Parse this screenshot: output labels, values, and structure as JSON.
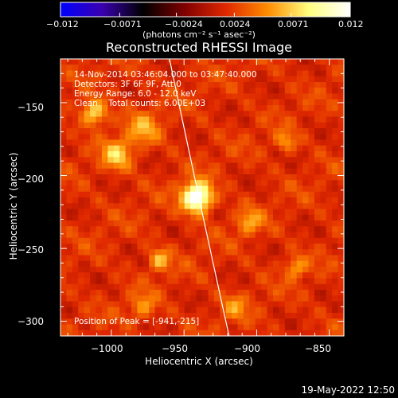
{
  "chart_data": {
    "type": "heatmap",
    "title": "Reconstructed RHESSI Image",
    "xlabel": "Heliocentric X (arcsec)",
    "ylabel": "Heliocentric Y (arcsec)",
    "xlim": [
      -1035,
      -840
    ],
    "ylim": [
      -310,
      -120
    ],
    "x_ticks": [
      -1000,
      -950,
      -900,
      -850
    ],
    "x_tick_labels": [
      "−1000",
      "−950",
      "−900",
      "−850"
    ],
    "y_ticks": [
      -150,
      -200,
      -250,
      -300
    ],
    "y_tick_labels": [
      "−150",
      "−200",
      "−250",
      "−300"
    ],
    "colorbar": {
      "ticks": [
        -0.012,
        -0.0071,
        -0.0024,
        0.0024,
        0.0071,
        0.012
      ],
      "tick_labels": [
        "−0.012",
        "−0.0071",
        "−0.0024",
        "0.0024",
        "0.0071",
        "0.012"
      ],
      "unit_label": "(photons cm⁻² s⁻¹ asec⁻²)",
      "range": [
        -0.012,
        0.012
      ],
      "colormap": [
        "#0000ff",
        "#3a00b0",
        "#000000",
        "#800000",
        "#e02800",
        "#ff8c00",
        "#ffff80",
        "#ffffff"
      ]
    },
    "peak": {
      "x": -941,
      "y": -215
    },
    "sources": [
      {
        "x": -941,
        "y": -215,
        "intensity": 1.0,
        "sigma": 7
      },
      {
        "x": -1012,
        "y": -157,
        "intensity": 0.55,
        "sigma": 6
      },
      {
        "x": -996,
        "y": -186,
        "intensity": 0.45,
        "sigma": 7
      },
      {
        "x": -978,
        "y": -168,
        "intensity": 0.32,
        "sigma": 8
      },
      {
        "x": -967,
        "y": -258,
        "intensity": 0.4,
        "sigma": 5
      },
      {
        "x": -905,
        "y": -232,
        "intensity": 0.32,
        "sigma": 6
      },
      {
        "x": -880,
        "y": -177,
        "intensity": 0.3,
        "sigma": 5
      },
      {
        "x": -873,
        "y": -263,
        "intensity": 0.32,
        "sigma": 5
      },
      {
        "x": -978,
        "y": -290,
        "intensity": 0.28,
        "sigma": 6
      },
      {
        "x": -915,
        "y": -290,
        "intensity": 0.26,
        "sigma": 6
      }
    ],
    "limb_curve": [
      [
        -960,
        -120
      ],
      [
        -940,
        -215
      ],
      [
        -919,
        -310
      ]
    ]
  },
  "info": {
    "time_range": "14-Nov-2014 03:46:04.000 to 03:47:40.000",
    "detectors": "Detectors: 3F 6F 9F, Att 0",
    "energy": "Energy Range: 6.0 - 12.0 keV",
    "method": "Clean    Total counts: 6.00E+03",
    "peak_label": "Position of Peak = [-941,-215]"
  },
  "footer": "19-May-2022 12:50"
}
